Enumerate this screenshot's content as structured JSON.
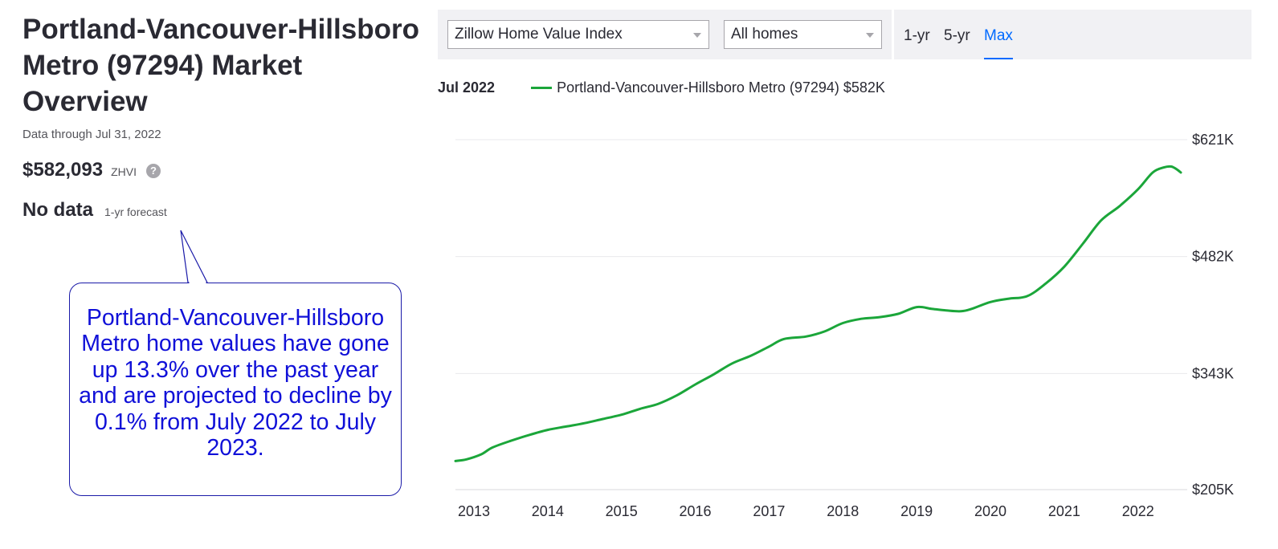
{
  "left": {
    "title": "Portland-Vancouver-Hillsboro Metro (97294) Market Overview",
    "data_through": "Data through Jul 31, 2022",
    "zhvi_value": "$582,093",
    "zhvi_label": "ZHVI",
    "help_icon": "question-circle-icon",
    "forecast_value": "No data",
    "forecast_label": "1-yr forecast"
  },
  "callout": {
    "text": "Portland-Vancouver-Hillsboro Metro home values have gone up 13.3% over the past year and are projected to decline by 0.1% from July 2022 to July 2023.",
    "border_color": "#1a1aa8",
    "text_color": "#1010d8"
  },
  "toolbar": {
    "metric_select": "Zillow Home Value Index",
    "home_type_select": "All homes",
    "ranges": [
      "1-yr",
      "5-yr",
      "Max"
    ],
    "active_range": "Max",
    "active_color": "#006aff"
  },
  "legend": {
    "date": "Jul 2022",
    "series_label": "Portland-Vancouver-Hillsboro Metro (97294) $582K",
    "series_color": "#1ba63a"
  },
  "chart_data": {
    "type": "line",
    "title": "",
    "xlabel": "",
    "ylabel": "",
    "y_ticks": [
      "$621K",
      "$482K",
      "$343K",
      "$205K"
    ],
    "y_tick_values": [
      621,
      482,
      343,
      205
    ],
    "ylim": [
      205,
      621
    ],
    "x_ticks": [
      "2013",
      "2014",
      "2015",
      "2016",
      "2017",
      "2018",
      "2019",
      "2020",
      "2021",
      "2022"
    ],
    "x_tick_values": [
      2013,
      2014,
      2015,
      2016,
      2017,
      2018,
      2019,
      2020,
      2021,
      2022
    ],
    "xlim": [
      2012.75,
      2022.6
    ],
    "grid": true,
    "series": [
      {
        "name": "Portland-Vancouver-Hillsboro Metro (97294)",
        "color": "#1ba63a",
        "x": [
          2012.75,
          2012.9,
          2013.1,
          2013.25,
          2013.5,
          2013.75,
          2014.0,
          2014.25,
          2014.5,
          2014.75,
          2015.0,
          2015.25,
          2015.5,
          2015.75,
          2016.0,
          2016.25,
          2016.5,
          2016.75,
          2017.0,
          2017.2,
          2017.5,
          2017.75,
          2018.0,
          2018.25,
          2018.5,
          2018.75,
          2019.0,
          2019.2,
          2019.4,
          2019.6,
          2019.75,
          2020.0,
          2020.25,
          2020.5,
          2020.75,
          2021.0,
          2021.25,
          2021.5,
          2021.75,
          2022.0,
          2022.2,
          2022.35,
          2022.45,
          2022.52,
          2022.58
        ],
        "values": [
          239,
          241,
          247,
          255,
          263,
          270,
          276,
          280,
          284,
          289,
          294,
          301,
          307,
          317,
          330,
          342,
          355,
          364,
          375,
          384,
          387,
          393,
          403,
          408,
          410,
          414,
          422,
          420,
          418,
          417,
          420,
          428,
          432,
          435,
          450,
          470,
          497,
          525,
          542,
          562,
          582,
          588,
          589,
          586,
          582
        ]
      }
    ]
  }
}
